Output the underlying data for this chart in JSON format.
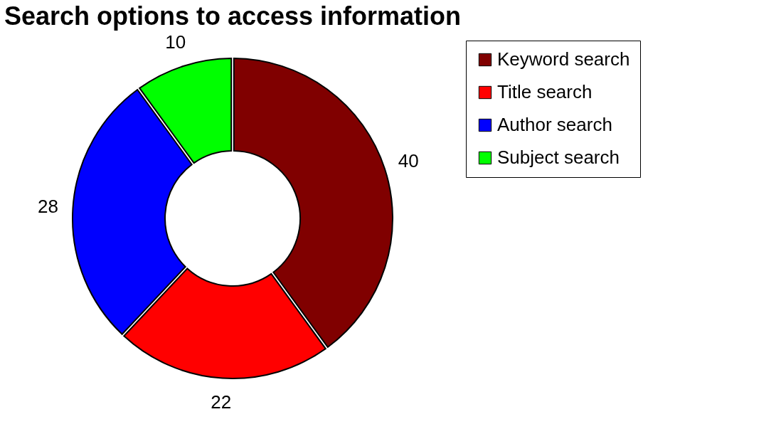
{
  "chart_data": {
    "type": "donut",
    "title": "Search options to access information",
    "categories": [
      "Keyword search",
      "Title search",
      "Author search",
      "Subject search"
    ],
    "values": [
      40,
      22,
      28,
      10
    ],
    "colors": [
      "#800000",
      "#ff0000",
      "#0000ff",
      "#00ff00"
    ],
    "data_labels": true,
    "legend": "right"
  }
}
